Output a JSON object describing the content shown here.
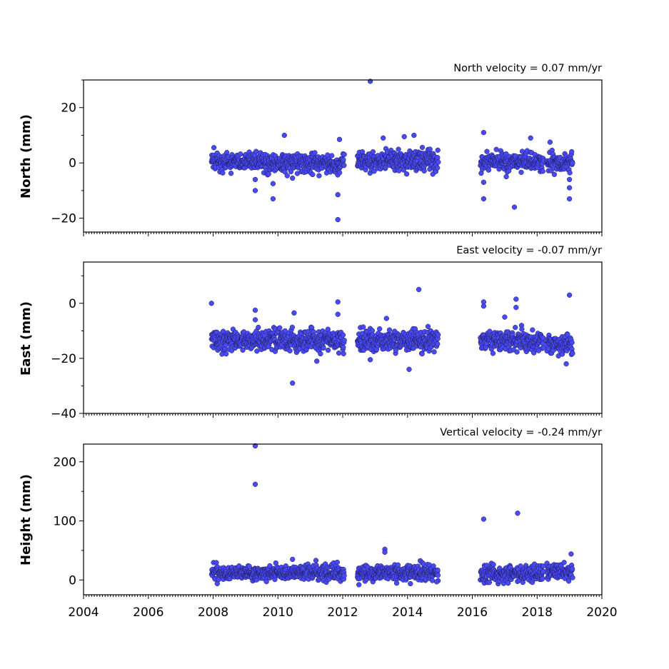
{
  "chart_data": [
    {
      "type": "scatter",
      "annotation": "North velocity = 0.07 mm/yr",
      "ylabel": "North (mm)",
      "xlim": [
        2004,
        2020
      ],
      "ylim": [
        -25,
        30
      ],
      "yticks": [
        -20,
        0,
        20
      ],
      "ytick_labels": [
        "−20",
        "0",
        "20"
      ],
      "x_tick_labels_shown": false,
      "marker_color": "#4a4af5",
      "segments": [
        {
          "x_start": 2007.95,
          "x_end": 2012.05,
          "center": 0,
          "spread": 1.8
        },
        {
          "x_start": 2012.45,
          "x_end": 2014.95,
          "center": 1,
          "spread": 1.8
        },
        {
          "x_start": 2016.25,
          "x_end": 2018.2,
          "center": 0.5,
          "spread": 1.6
        },
        {
          "x_start": 2018.3,
          "x_end": 2019.1,
          "center": 0,
          "spread": 1.5
        }
      ],
      "outliers": [
        [
          2012.85,
          29.5
        ],
        [
          2016.35,
          11
        ],
        [
          2010.2,
          10
        ],
        [
          2014.2,
          10
        ],
        [
          2013.25,
          9
        ],
        [
          2013.9,
          9.5
        ],
        [
          2017.8,
          9
        ],
        [
          2018.4,
          7.5
        ],
        [
          2011.9,
          8.5
        ],
        [
          2009.3,
          -6
        ],
        [
          2009.3,
          -10
        ],
        [
          2009.85,
          -7.5
        ],
        [
          2009.85,
          -13
        ],
        [
          2010.45,
          -5.5
        ],
        [
          2011.85,
          -11.5
        ],
        [
          2011.85,
          -20.5
        ],
        [
          2016.35,
          -7
        ],
        [
          2016.35,
          -13
        ],
        [
          2017.3,
          -16
        ],
        [
          2017.05,
          -5
        ],
        [
          2019.0,
          -6
        ],
        [
          2019.0,
          -9
        ],
        [
          2019.0,
          -13
        ]
      ]
    },
    {
      "type": "scatter",
      "annotation": "East velocity = -0.07 mm/yr",
      "ylabel": "East (mm)",
      "xlim": [
        2004,
        2020
      ],
      "ylim": [
        -40,
        15
      ],
      "yticks": [
        -40,
        -20,
        0
      ],
      "ytick_labels": [
        "−40",
        "−20",
        "0"
      ],
      "x_tick_labels_shown": false,
      "marker_color": "#4a4af5",
      "segments": [
        {
          "x_start": 2007.95,
          "x_end": 2012.05,
          "center": -13.5,
          "spread": 1.8
        },
        {
          "x_start": 2012.45,
          "x_end": 2014.95,
          "center": -13.5,
          "spread": 1.8
        },
        {
          "x_start": 2016.25,
          "x_end": 2018.2,
          "center": -13.5,
          "spread": 1.8
        },
        {
          "x_start": 2018.3,
          "x_end": 2019.1,
          "center": -15,
          "spread": 2
        }
      ],
      "outliers": [
        [
          2007.95,
          0
        ],
        [
          2011.85,
          0.5
        ],
        [
          2011.85,
          -4
        ],
        [
          2009.3,
          -2.5
        ],
        [
          2009.3,
          -6
        ],
        [
          2010.5,
          -3.5
        ],
        [
          2010.45,
          -29
        ],
        [
          2011.2,
          -21
        ],
        [
          2014.35,
          5
        ],
        [
          2014.05,
          -24
        ],
        [
          2016.35,
          0.5
        ],
        [
          2016.35,
          -1
        ],
        [
          2017.35,
          1.5
        ],
        [
          2017.35,
          -1.5
        ],
        [
          2017.0,
          -5
        ],
        [
          2019.0,
          3
        ],
        [
          2018.9,
          -22
        ],
        [
          2013.35,
          -5.5
        ],
        [
          2012.85,
          -20.5
        ]
      ]
    },
    {
      "type": "scatter",
      "annotation": "Vertical velocity = -0.24 mm/yr",
      "ylabel": "Height (mm)",
      "xlim": [
        2004,
        2020
      ],
      "ylim": [
        -25,
        230
      ],
      "yticks": [
        0,
        100,
        200
      ],
      "ytick_labels": [
        "0",
        "100",
        "200"
      ],
      "xticks": [
        2004,
        2006,
        2008,
        2010,
        2012,
        2014,
        2016,
        2018,
        2020
      ],
      "xtick_labels": [
        "2004",
        "2006",
        "2008",
        "2010",
        "2012",
        "2014",
        "2016",
        "2018",
        "2020"
      ],
      "x_tick_labels_shown": true,
      "marker_color": "#4a4af5",
      "segments": [
        {
          "x_start": 2007.95,
          "x_end": 2012.05,
          "center": 12,
          "spread": 6
        },
        {
          "x_start": 2012.45,
          "x_end": 2014.95,
          "center": 12,
          "spread": 6
        },
        {
          "x_start": 2016.25,
          "x_end": 2018.2,
          "center": 12,
          "spread": 7
        },
        {
          "x_start": 2018.3,
          "x_end": 2019.1,
          "center": 15,
          "spread": 6
        }
      ],
      "outliers": [
        [
          2009.3,
          227
        ],
        [
          2009.3,
          162
        ],
        [
          2016.35,
          103
        ],
        [
          2017.4,
          113
        ],
        [
          2013.3,
          52
        ],
        [
          2013.3,
          47
        ],
        [
          2019.05,
          44
        ],
        [
          2010.45,
          35
        ],
        [
          2012.5,
          -8
        ],
        [
          2014.9,
          -3
        ]
      ]
    }
  ]
}
